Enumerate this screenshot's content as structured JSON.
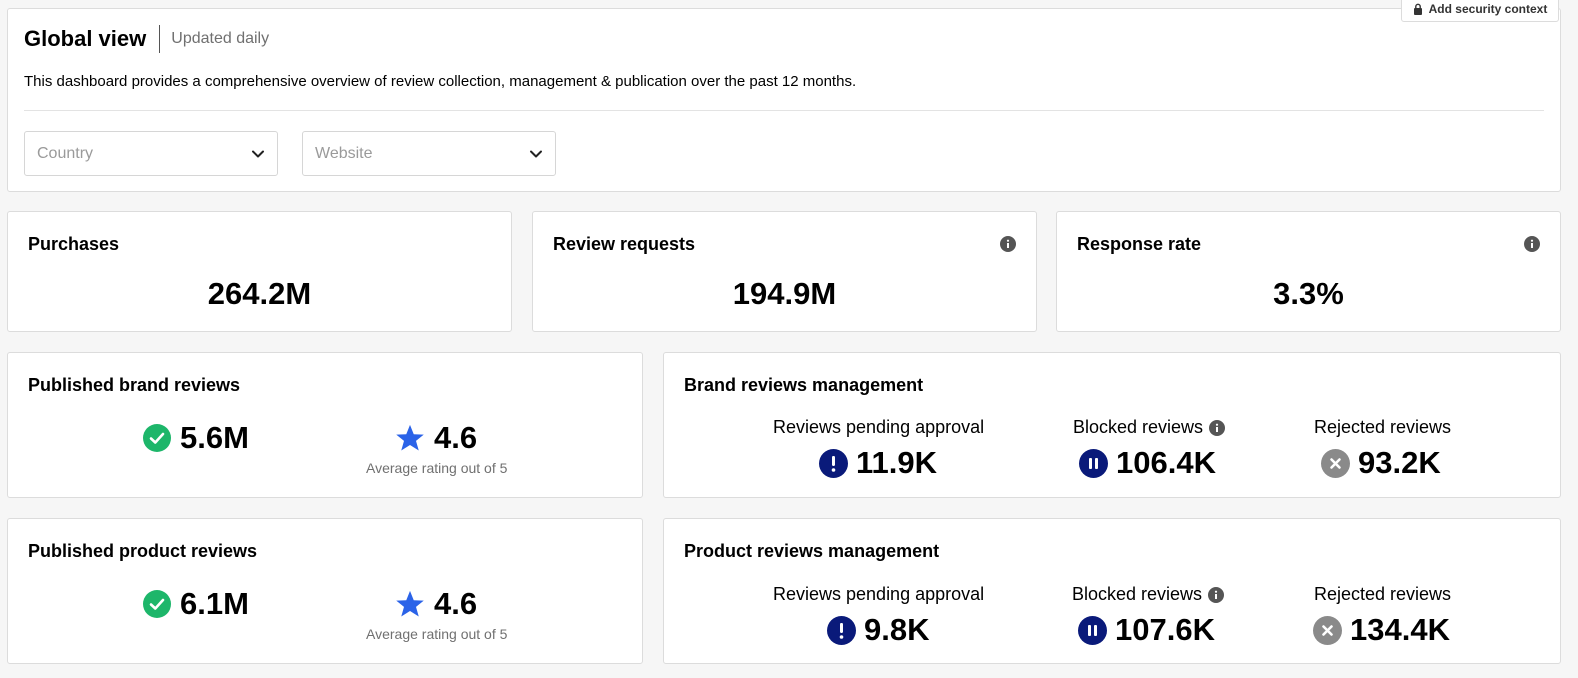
{
  "header": {
    "title": "Global view",
    "subtitle": "Updated daily",
    "description": "This dashboard provides a comprehensive overview of review collection, management & publication over the past 12 months.",
    "security_button_label": "Add security context",
    "filters": [
      {
        "placeholder": "Country"
      },
      {
        "placeholder": "Website"
      }
    ]
  },
  "kpis": {
    "purchases": {
      "title": "Purchases",
      "value": "264.2M"
    },
    "review_requests": {
      "title": "Review requests",
      "value": "194.9M"
    },
    "response_rate": {
      "title": "Response rate",
      "value": "3.3%"
    }
  },
  "published_brand": {
    "title": "Published brand reviews",
    "count": "5.6M",
    "rating": "4.6",
    "rating_caption": "Average rating out of 5"
  },
  "published_product": {
    "title": "Published product reviews",
    "count": "6.1M",
    "rating": "4.6",
    "rating_caption": "Average rating out of 5"
  },
  "brand_mgmt": {
    "title": "Brand reviews management",
    "pending_label": "Reviews pending approval",
    "pending_value": "11.9K",
    "blocked_label": "Blocked reviews",
    "blocked_value": "106.4K",
    "rejected_label": "Rejected reviews",
    "rejected_value": "93.2K"
  },
  "product_mgmt": {
    "title": "Product reviews management",
    "pending_label": "Reviews pending approval",
    "pending_value": "9.8K",
    "blocked_label": "Blocked reviews",
    "blocked_value": "107.6K",
    "rejected_label": "Rejected reviews",
    "rejected_value": "134.4K"
  },
  "colors": {
    "check_green": "#1db66a",
    "star_blue": "#2b63e8",
    "navy": "#0a1a7a",
    "grey": "#8a8a8a",
    "info_grey": "#555555"
  }
}
